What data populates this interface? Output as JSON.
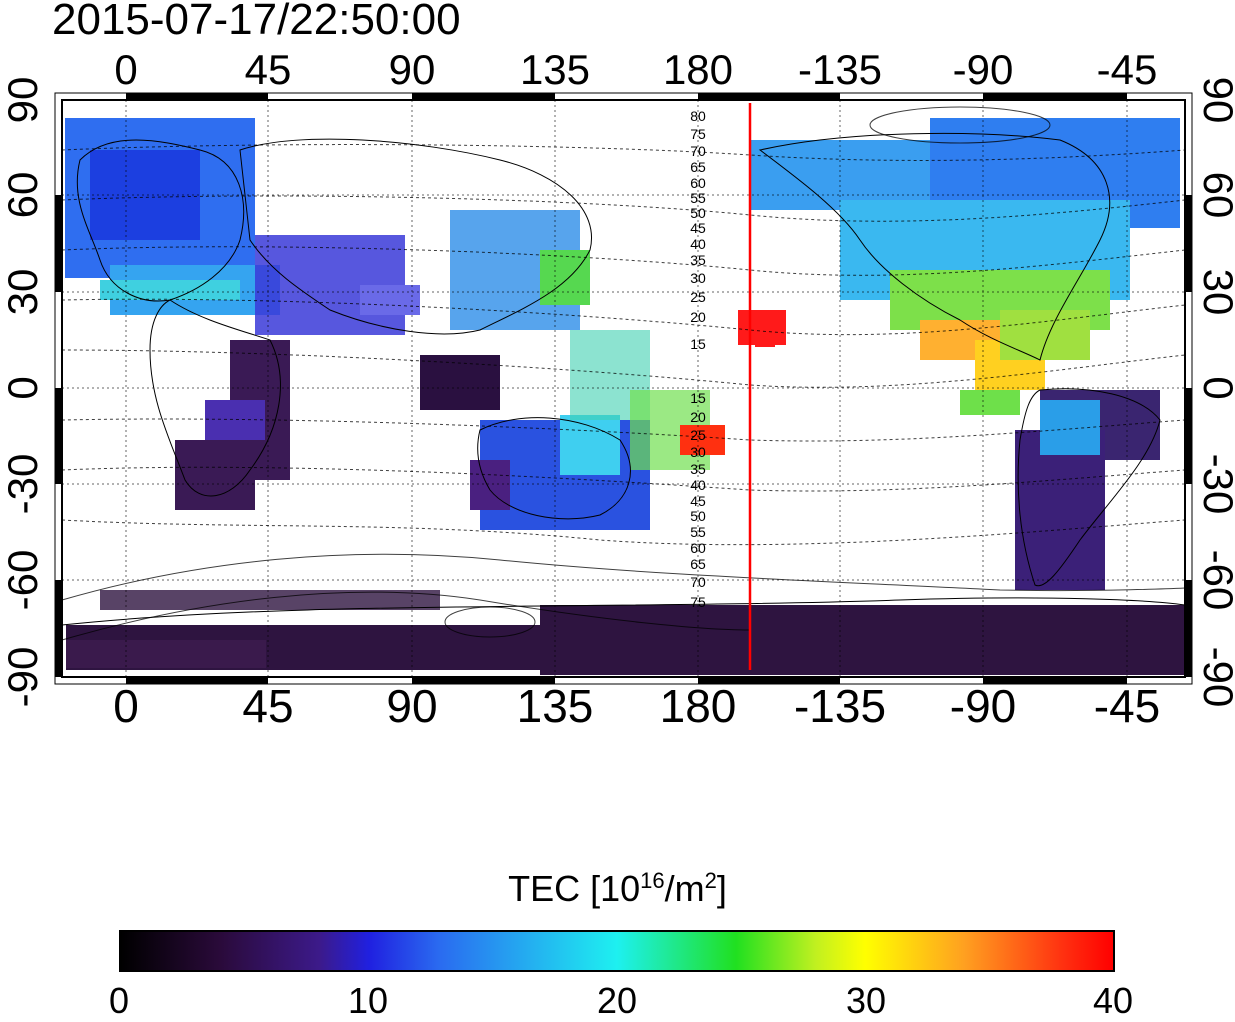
{
  "timestamp": "2015-07-17/22:50:00",
  "map": {
    "top_axis_ticks": [
      "0",
      "45",
      "90",
      "135",
      "180",
      "-135",
      "-90",
      "-45"
    ],
    "bottom_axis_ticks": [
      "0",
      "45",
      "90",
      "135",
      "180",
      "-135",
      "-90",
      "-45"
    ],
    "left_axis_ticks": [
      "90",
      "60",
      "30",
      "0",
      "-30",
      "-60",
      "-90"
    ],
    "right_axis_ticks": [
      "90",
      "60",
      "30",
      "0",
      "-30",
      "-60",
      "-90"
    ],
    "contour_labels_north": [
      "80",
      "75",
      "70",
      "65",
      "60",
      "55",
      "50",
      "45",
      "40",
      "35",
      "30",
      "25",
      "20",
      "15"
    ],
    "contour_labels_south": [
      "15",
      "20",
      "25",
      "30",
      "35",
      "40",
      "45",
      "50",
      "55",
      "60",
      "65",
      "70",
      "75"
    ],
    "marker_line_color": "#ff0000"
  },
  "colorbar": {
    "title_main": "TEC  [10",
    "title_sup1": "16",
    "title_mid": "/m",
    "title_sup2": "2",
    "title_end": "]",
    "ticks": [
      "0",
      "10",
      "20",
      "30",
      "40"
    ],
    "range": [
      0,
      40
    ],
    "colormap": "black-purple-blue-cyan-green-yellow-red"
  }
}
